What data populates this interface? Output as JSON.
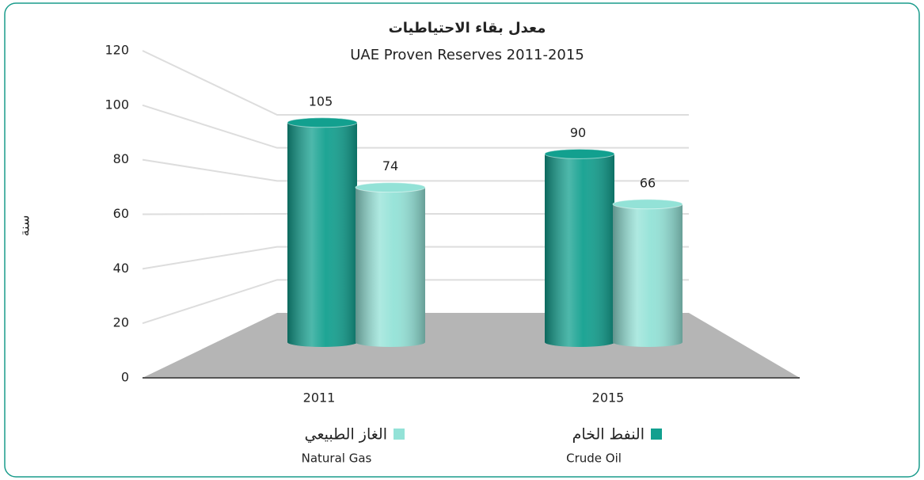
{
  "chart_data": {
    "type": "bar3d",
    "title": "معدل بقاء الاحتياطيات",
    "subtitle": "UAE Proven Reserves 2011-2015",
    "y_label": "سنة",
    "categories": [
      "2011",
      "2015"
    ],
    "series": [
      {
        "name": "Crude Oil",
        "name_ar": "النفط الخام",
        "color": "#12a08f",
        "values": [
          105,
          90
        ]
      },
      {
        "name": "Natural Gas",
        "name_ar": "الغاز الطبيعي",
        "color": "#93e2d7",
        "values": [
          74,
          66
        ]
      }
    ],
    "ylim": [
      0,
      120
    ],
    "yticks": [
      0,
      20,
      40,
      60,
      80,
      100,
      120
    ],
    "grid": true
  }
}
